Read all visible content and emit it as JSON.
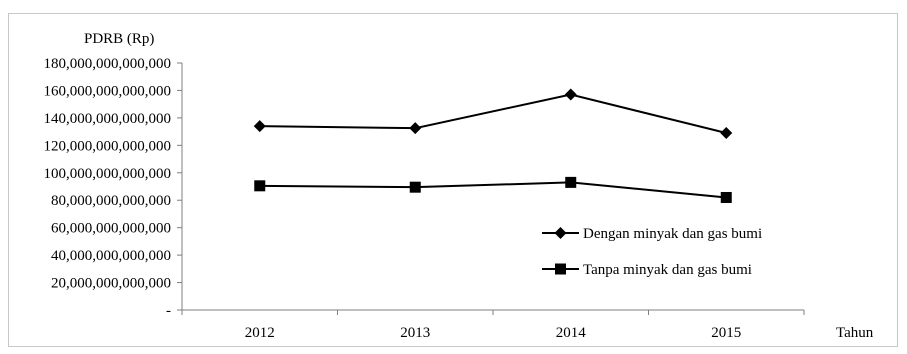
{
  "chart_data": {
    "type": "line",
    "title": "",
    "ylabel": "PDRB (Rp)",
    "xlabel": "Tahun",
    "categories": [
      "2012",
      "2013",
      "2014",
      "2015"
    ],
    "yticks": [
      "-",
      "20,000,000,000,000",
      "40,000,000,000,000",
      "60,000,000,000,000",
      "80,000,000,000,000",
      "100,000,000,000,000",
      "120,000,000,000,000",
      "140,000,000,000,000",
      "160,000,000,000,000",
      "180,000,000,000,000"
    ],
    "ylim": [
      0,
      180000000000000
    ],
    "ytick_step": 20000000000000,
    "grid": false,
    "legend_position": "center-right",
    "series": [
      {
        "name": "Dengan minyak dan gas bumi",
        "marker": "diamond",
        "color": "#000000",
        "values": [
          134000000000000,
          132500000000000,
          157000000000000,
          129000000000000
        ]
      },
      {
        "name": "Tanpa minyak dan gas bumi",
        "marker": "square",
        "color": "#000000",
        "values": [
          90500000000000,
          89500000000000,
          93000000000000,
          82000000000000
        ]
      }
    ]
  }
}
